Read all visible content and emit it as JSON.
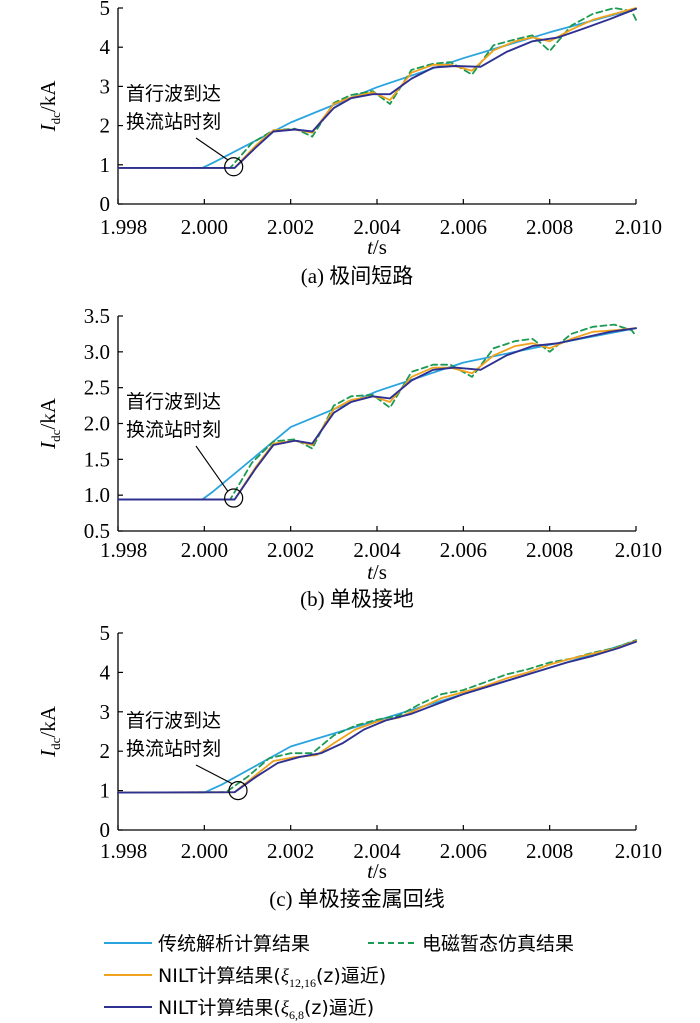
{
  "colors": {
    "traditional": "#2aa4de",
    "emt": "#1a9a52",
    "nilt_12_16": "#f0a21c",
    "nilt_6_8": "#2e3192"
  },
  "legend": {
    "traditional": "传统解析计算结果",
    "emt": "电磁暂态仿真结果",
    "nilt_12_16_prefix": "NILT计算结果(",
    "nilt_12_16_sym": "ξ",
    "nilt_12_16_sub": "12,16",
    "nilt_12_16_suffix": "(z)逼近)",
    "nilt_6_8_prefix": "NILT计算结果(",
    "nilt_6_8_sym": "ξ",
    "nilt_6_8_sub": "6,8",
    "nilt_6_8_suffix": "(z)逼近)"
  },
  "chart_data": [
    {
      "type": "line",
      "caption": "(a)  极间短路",
      "xlabel_var": "t",
      "xlabel_unit": "/s",
      "ylabel_var": "I",
      "ylabel_sub": "dc",
      "ylabel_unit": "/kA",
      "xlim": [
        1.998,
        2.01
      ],
      "ylim": [
        0,
        5
      ],
      "xticks": [
        "1.998",
        "2.000",
        "2.002",
        "2.004",
        "2.006",
        "2.008",
        "2.010"
      ],
      "yticks": [
        "0",
        "1",
        "2",
        "3",
        "4",
        "5"
      ],
      "annotation": [
        "首行波到达",
        "换流站时刻"
      ],
      "marker": {
        "t": 2.00068,
        "i": 0.95
      },
      "series": [
        {
          "key": "traditional",
          "name": "传统解析计算结果",
          "t": [
            1.998,
            1.99995,
            2.0002,
            2.002,
            2.004,
            2.006,
            2.008,
            2.01
          ],
          "i": [
            0.92,
            0.92,
            1.05,
            2.08,
            2.98,
            3.72,
            4.38,
            4.98
          ]
        },
        {
          "key": "emt",
          "name": "电磁暂态仿真结果",
          "t": [
            1.998,
            2.0006,
            2.0011,
            2.0016,
            2.0021,
            2.0025,
            2.003,
            2.0034,
            2.0039,
            2.0043,
            2.0048,
            2.0053,
            2.0057,
            2.0062,
            2.0067,
            2.0072,
            2.0076,
            2.008,
            2.0085,
            2.009,
            2.0095,
            2.0099,
            2.01
          ],
          "i": [
            0.92,
            0.92,
            1.55,
            1.88,
            1.92,
            1.72,
            2.58,
            2.78,
            2.88,
            2.55,
            3.42,
            3.58,
            3.62,
            3.3,
            4.05,
            4.2,
            4.3,
            3.9,
            4.55,
            4.85,
            5.0,
            4.92,
            4.7
          ]
        },
        {
          "key": "nilt_12_16",
          "name": "NILT计算结果(ξ12,16(z)逼近)",
          "t": [
            1.998,
            2.0007,
            2.0012,
            2.0016,
            2.0021,
            2.0025,
            2.003,
            2.0034,
            2.0039,
            2.0043,
            2.0048,
            2.0053,
            2.0057,
            2.0062,
            2.0067,
            2.0072,
            2.0076,
            2.008,
            2.0085,
            2.009,
            2.0095,
            2.01
          ],
          "i": [
            0.92,
            0.92,
            1.5,
            1.88,
            1.9,
            1.82,
            2.55,
            2.72,
            2.85,
            2.65,
            3.35,
            3.55,
            3.55,
            3.4,
            3.92,
            4.15,
            4.25,
            4.15,
            4.45,
            4.7,
            4.85,
            5.0
          ]
        },
        {
          "key": "nilt_6_8",
          "name": "NILT计算结果(ξ6,8(z)逼近)",
          "t": [
            1.998,
            2.0007,
            2.0012,
            2.0016,
            2.0021,
            2.0025,
            2.003,
            2.0034,
            2.0039,
            2.0043,
            2.0048,
            2.0053,
            2.0058,
            2.0064,
            2.007,
            2.0076,
            2.0082,
            2.0088,
            2.0094,
            2.01
          ],
          "i": [
            0.92,
            0.92,
            1.45,
            1.85,
            1.9,
            1.85,
            2.45,
            2.7,
            2.8,
            2.8,
            3.2,
            3.48,
            3.52,
            3.5,
            3.88,
            4.15,
            4.25,
            4.48,
            4.72,
            4.98
          ]
        }
      ]
    },
    {
      "type": "line",
      "caption": "(b)  单极接地",
      "xlabel_var": "t",
      "xlabel_unit": "/s",
      "ylabel_var": "I",
      "ylabel_sub": "dc",
      "ylabel_unit": "/kA",
      "xlim": [
        1.998,
        2.01
      ],
      "ylim": [
        0.5,
        3.5
      ],
      "xticks": [
        "1.998",
        "2.000",
        "2.002",
        "2.004",
        "2.006",
        "2.008",
        "2.010"
      ],
      "yticks": [
        "0.5",
        "1.0",
        "1.5",
        "2.0",
        "2.5",
        "3.0",
        "3.5"
      ],
      "annotation": [
        "首行波到达",
        "换流站时刻"
      ],
      "marker": {
        "t": 2.00068,
        "i": 0.96
      },
      "series": [
        {
          "key": "traditional",
          "name": "传统解析计算结果",
          "t": [
            1.998,
            1.99995,
            2.0002,
            2.002,
            2.004,
            2.006,
            2.008,
            2.01
          ],
          "i": [
            0.94,
            0.94,
            1.05,
            1.95,
            2.45,
            2.85,
            3.1,
            3.33
          ]
        },
        {
          "key": "emt",
          "name": "电磁暂态仿真结果",
          "t": [
            1.998,
            2.0006,
            2.0011,
            2.0016,
            2.0021,
            2.0025,
            2.003,
            2.0034,
            2.0039,
            2.0043,
            2.0048,
            2.0053,
            2.0057,
            2.0062,
            2.0067,
            2.0072,
            2.0076,
            2.008,
            2.0085,
            2.009,
            2.0095,
            2.0099,
            2.01
          ],
          "i": [
            0.94,
            0.94,
            1.45,
            1.75,
            1.78,
            1.65,
            2.25,
            2.38,
            2.4,
            2.22,
            2.72,
            2.82,
            2.82,
            2.65,
            3.05,
            3.15,
            3.18,
            3.0,
            3.25,
            3.35,
            3.38,
            3.3,
            3.22
          ]
        },
        {
          "key": "nilt_12_16",
          "name": "NILT计算结果(ξ12,16(z)逼近)",
          "t": [
            1.998,
            2.0007,
            2.0012,
            2.0016,
            2.0021,
            2.0025,
            2.003,
            2.0034,
            2.0039,
            2.0043,
            2.0048,
            2.0053,
            2.0057,
            2.0062,
            2.0067,
            2.0072,
            2.0076,
            2.008,
            2.0085,
            2.009,
            2.0095,
            2.01
          ],
          "i": [
            0.94,
            0.94,
            1.4,
            1.72,
            1.76,
            1.7,
            2.2,
            2.33,
            2.38,
            2.3,
            2.65,
            2.78,
            2.78,
            2.7,
            2.95,
            3.08,
            3.12,
            3.05,
            3.18,
            3.28,
            3.3,
            3.33
          ]
        },
        {
          "key": "nilt_6_8",
          "name": "NILT计算结果(ξ6,8(z)逼近)",
          "t": [
            1.998,
            2.0007,
            2.0012,
            2.0016,
            2.0021,
            2.0025,
            2.003,
            2.0034,
            2.0039,
            2.0043,
            2.0048,
            2.0053,
            2.0058,
            2.0064,
            2.007,
            2.0076,
            2.0082,
            2.0088,
            2.0094,
            2.01
          ],
          "i": [
            0.94,
            0.94,
            1.38,
            1.7,
            1.76,
            1.72,
            2.15,
            2.3,
            2.38,
            2.35,
            2.6,
            2.75,
            2.78,
            2.75,
            2.95,
            3.08,
            3.12,
            3.2,
            3.28,
            3.33
          ]
        }
      ]
    },
    {
      "type": "line",
      "caption": "(c)  单极接金属回线",
      "xlabel_var": "t",
      "xlabel_unit": "/s",
      "ylabel_var": "I",
      "ylabel_sub": "dc",
      "ylabel_unit": "/kA",
      "xlim": [
        1.998,
        2.01
      ],
      "ylim": [
        0,
        5
      ],
      "xticks": [
        "1.998",
        "2.000",
        "2.002",
        "2.004",
        "2.006",
        "2.008",
        "2.010"
      ],
      "yticks": [
        "0",
        "1",
        "2",
        "3",
        "4",
        "5"
      ],
      "annotation": [
        "首行波到达",
        "换流站时刻"
      ],
      "marker": {
        "t": 2.00078,
        "i": 1.0
      },
      "series": [
        {
          "key": "traditional",
          "name": "传统解析计算结果",
          "t": [
            1.998,
            2.0,
            2.0004,
            2.002,
            2.004,
            2.006,
            2.008,
            2.01
          ],
          "i": [
            0.95,
            0.95,
            1.15,
            2.12,
            2.78,
            3.45,
            4.12,
            4.8
          ]
        },
        {
          "key": "emt",
          "name": "电磁暂态仿真结果",
          "t": [
            1.998,
            2.0005,
            2.001,
            2.0015,
            2.002,
            2.0025,
            2.003,
            2.0035,
            2.004,
            2.0045,
            2.005,
            2.0055,
            2.006,
            2.0065,
            2.007,
            2.0075,
            2.008,
            2.0085,
            2.009,
            2.0095,
            2.01
          ],
          "i": [
            0.95,
            0.96,
            1.35,
            1.82,
            1.95,
            1.95,
            2.4,
            2.65,
            2.8,
            2.9,
            3.2,
            3.45,
            3.55,
            3.75,
            3.95,
            4.08,
            4.25,
            4.35,
            4.5,
            4.62,
            4.82
          ]
        },
        {
          "key": "nilt_12_16",
          "name": "NILT计算结果(ξ12,16(z)逼近)",
          "t": [
            1.998,
            2.0007,
            2.0012,
            2.0016,
            2.0021,
            2.0026,
            2.003,
            2.0035,
            2.004,
            2.0045,
            2.005,
            2.0055,
            2.006,
            2.0065,
            2.007,
            2.0075,
            2.008,
            2.0085,
            2.009,
            2.0095,
            2.01
          ],
          "i": [
            0.95,
            0.96,
            1.4,
            1.75,
            1.85,
            1.9,
            2.2,
            2.55,
            2.75,
            2.85,
            3.1,
            3.35,
            3.5,
            3.65,
            3.85,
            4.0,
            4.2,
            4.35,
            4.48,
            4.6,
            4.8
          ]
        },
        {
          "key": "nilt_6_8",
          "name": "NILT计算结果(ξ6,8(z)逼近)",
          "t": [
            1.998,
            2.0007,
            2.0012,
            2.0017,
            2.0022,
            2.0027,
            2.0032,
            2.0037,
            2.0042,
            2.0048,
            2.0054,
            2.006,
            2.0066,
            2.0072,
            2.0078,
            2.0084,
            2.009,
            2.0096,
            2.01
          ],
          "i": [
            0.95,
            0.96,
            1.35,
            1.7,
            1.85,
            1.95,
            2.2,
            2.55,
            2.78,
            2.95,
            3.2,
            3.45,
            3.65,
            3.85,
            4.05,
            4.25,
            4.42,
            4.62,
            4.78
          ]
        }
      ]
    }
  ]
}
